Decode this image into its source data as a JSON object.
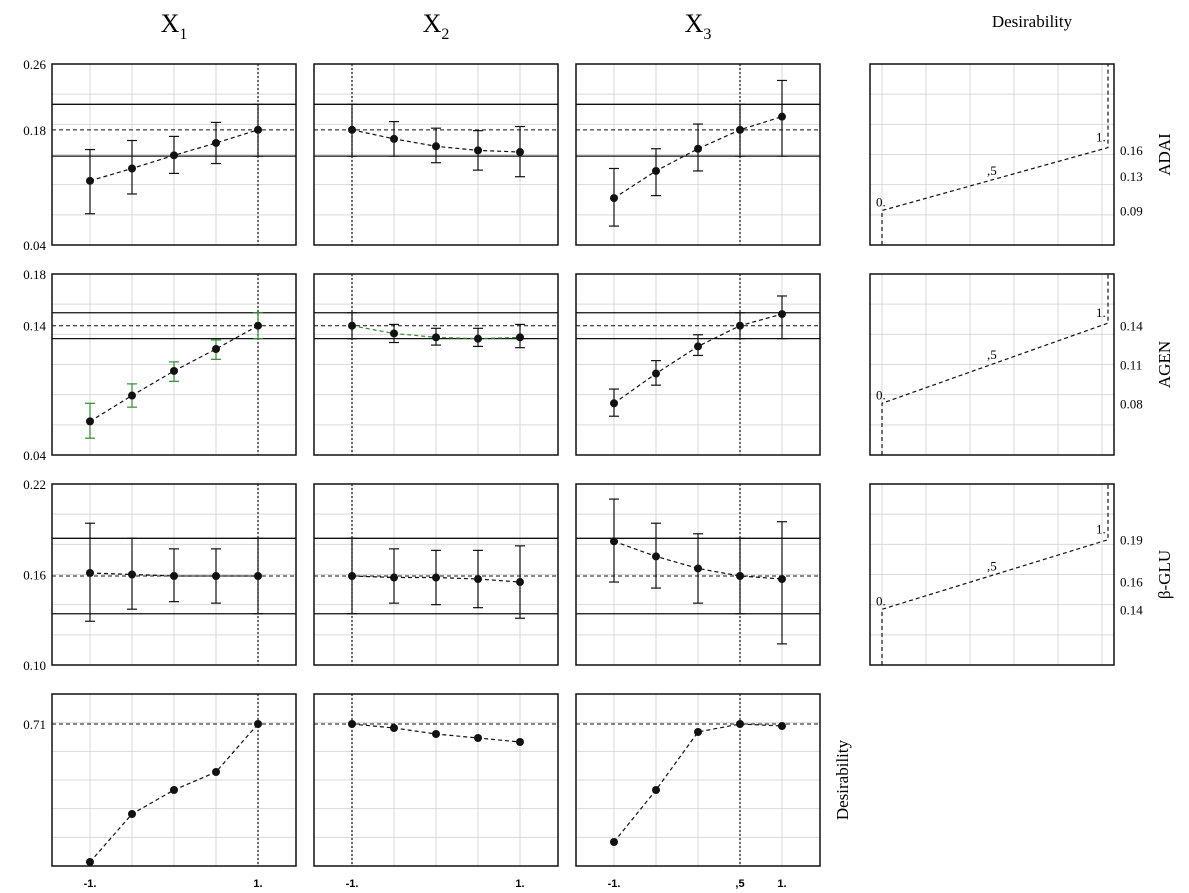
{
  "column_titles": [
    {
      "base": "X",
      "sub": "1"
    },
    {
      "base": "X",
      "sub": "2"
    },
    {
      "base": "X",
      "sub": "3"
    }
  ],
  "desirability_column_title": "Desirability",
  "chart_data": {
    "type": "scatter",
    "description_x": "factor level (coded)",
    "x_levels": [
      -1,
      -0.5,
      0,
      0.5,
      1
    ],
    "x_tick_labels": [
      "-1.",
      "1.",
      "-1.",
      "1.",
      "-1.",
      ",5",
      "1."
    ],
    "current_levels": {
      "X1": 1,
      "X2": -1,
      "X3": 0.5
    },
    "responses": [
      {
        "name": "ADAI",
        "ylim": [
          0.04,
          0.26
        ],
        "y_tick_labels": [
          "0.26",
          "0.18",
          "0.04"
        ],
        "y_ticks": [
          0.26,
          0.18,
          0.04
        ],
        "current_value": 0.18,
        "ci_band": [
          0.148,
          0.211
        ],
        "profiles": {
          "X1": {
            "mean": [
              0.118,
              0.133,
              0.149,
              0.164,
              0.18
            ],
            "low": [
              0.078,
              0.102,
              0.127,
              0.139,
              0.148
            ],
            "high": [
              0.156,
              0.167,
              0.172,
              0.189,
              0.211
            ]
          },
          "X2": {
            "mean": [
              0.18,
              0.169,
              0.16,
              0.155,
              0.153
            ],
            "low": [
              0.148,
              0.148,
              0.14,
              0.131,
              0.123
            ],
            "high": [
              0.211,
              0.19,
              0.182,
              0.179,
              0.184
            ]
          },
          "X3": {
            "mean": [
              0.097,
              0.13,
              0.157,
              0.18,
              0.196
            ],
            "low": [
              0.063,
              0.1,
              0.13,
              0.148,
              0.148
            ],
            "high": [
              0.133,
              0.157,
              0.187,
              0.211,
              0.24
            ]
          }
        }
      },
      {
        "name": "AGEN",
        "ylim": [
          0.04,
          0.18
        ],
        "y_tick_labels": [
          "0.18",
          "0.14",
          "0.04"
        ],
        "y_ticks": [
          0.18,
          0.14,
          0.04
        ],
        "current_value": 0.14,
        "ci_band": [
          0.13,
          0.15
        ],
        "profiles": {
          "X1": {
            "mean": [
              0.066,
              0.086,
              0.105,
              0.122,
              0.14
            ],
            "low": [
              0.053,
              0.077,
              0.097,
              0.114,
              0.13
            ],
            "high": [
              0.08,
              0.095,
              0.112,
              0.129,
              0.15
            ]
          },
          "X2": {
            "mean": [
              0.14,
              0.134,
              0.131,
              0.13,
              0.131
            ],
            "low": [
              0.13,
              0.127,
              0.125,
              0.124,
              0.123
            ],
            "high": [
              0.15,
              0.141,
              0.138,
              0.138,
              0.141
            ]
          },
          "X3": {
            "mean": [
              0.08,
              0.103,
              0.124,
              0.14,
              0.149
            ],
            "low": [
              0.07,
              0.094,
              0.117,
              0.13,
              0.13
            ],
            "high": [
              0.091,
              0.113,
              0.133,
              0.15,
              0.163
            ]
          }
        }
      },
      {
        "name": "β-GLU",
        "ylim": [
          0.1,
          0.22
        ],
        "y_tick_labels": [
          "0.22",
          "0.16",
          "0.10"
        ],
        "y_ticks": [
          0.22,
          0.16,
          0.1
        ],
        "current_value": 0.159,
        "ci_band": [
          0.134,
          0.184
        ],
        "profiles": {
          "X1": {
            "mean": [
              0.161,
              0.16,
              0.159,
              0.159,
              0.159
            ],
            "low": [
              0.129,
              0.137,
              0.142,
              0.141,
              0.134
            ],
            "high": [
              0.194,
              0.184,
              0.177,
              0.177,
              0.184
            ]
          },
          "X2": {
            "mean": [
              0.159,
              0.158,
              0.158,
              0.157,
              0.155
            ],
            "low": [
              0.134,
              0.141,
              0.14,
              0.138,
              0.131
            ],
            "high": [
              0.184,
              0.177,
              0.176,
              0.176,
              0.179
            ]
          },
          "X3": {
            "mean": [
              0.182,
              0.172,
              0.164,
              0.159,
              0.157
            ],
            "low": [
              0.155,
              0.151,
              0.141,
              0.134,
              0.114
            ],
            "high": [
              0.21,
              0.194,
              0.187,
              0.184,
              0.195
            ]
          }
        }
      }
    ],
    "desirability_row": {
      "name": "Desirability",
      "y_tick_labels": [
        "0.71"
      ],
      "y_ticks": [
        0.71
      ],
      "ylim": [
        0.0,
        0.86
      ],
      "current_value": 0.71,
      "profiles": {
        "X1": [
          0.02,
          0.26,
          0.38,
          0.47,
          0.71
        ],
        "X2": [
          0.71,
          0.69,
          0.66,
          0.64,
          0.62
        ],
        "X3": [
          0.12,
          0.38,
          0.67,
          0.71,
          0.7
        ]
      }
    },
    "desirability_functions": [
      {
        "name": "ADAI",
        "y_tick_labels": [
          "0.16",
          "0.13",
          "0.09"
        ],
        "y_ticks": [
          0.16,
          0.13,
          0.09
        ],
        "ylim": [
          0.05,
          0.26
        ],
        "low_value": 0.09,
        "high_value": 0.163,
        "labels": [
          "0.",
          ",5",
          "1."
        ]
      },
      {
        "name": "AGEN",
        "y_tick_labels": [
          "0.14",
          "0.11",
          "0.08"
        ],
        "y_ticks": [
          0.14,
          0.11,
          0.08
        ],
        "ylim": [
          0.04,
          0.18
        ],
        "low_value": 0.08,
        "high_value": 0.142,
        "labels": [
          "0.",
          ",5",
          "1."
        ]
      },
      {
        "name": "β-GLU",
        "y_tick_labels": [
          "0.19",
          "0.16",
          "0.14"
        ],
        "y_ticks": [
          0.19,
          0.16,
          0.14
        ],
        "ylim": [
          0.1,
          0.23
        ],
        "low_value": 0.14,
        "high_value": 0.19,
        "labels": [
          "0.",
          ",5",
          "1."
        ]
      }
    ]
  },
  "colors": {
    "green_highlight": "#2e8b2e",
    "grid": "#d9d9d9",
    "ink": "#111111"
  }
}
